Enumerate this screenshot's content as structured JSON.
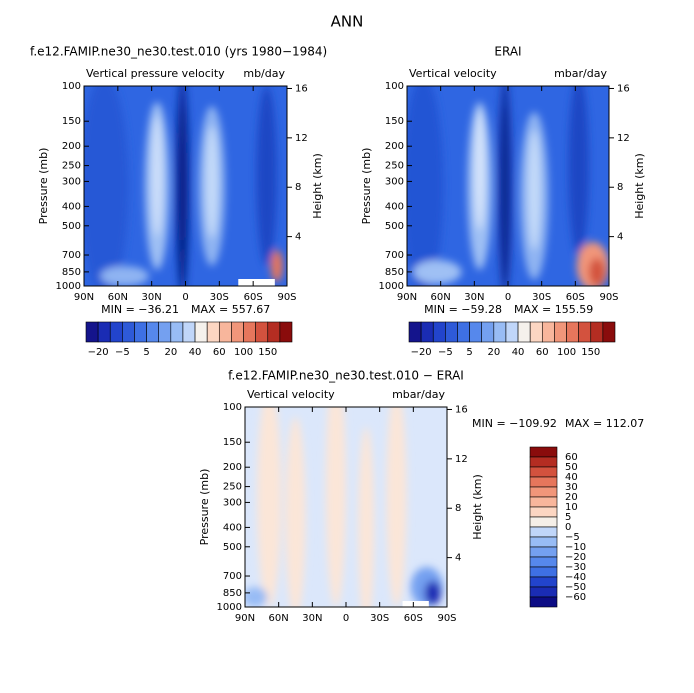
{
  "title": "ANN",
  "chart_data": [
    {
      "type": "contour",
      "title": "f.e12.FAMIP.ne30_ne30.test.010 (yrs 1980−1984)",
      "subtitle_left": "Vertical pressure velocity",
      "subtitle_right": "mb/day",
      "ylabel": "Pressure (mb)",
      "y2label": "Height (km)",
      "xlim": [
        90,
        -90
      ],
      "xticks": [
        {
          "value": 90,
          "label": "90N"
        },
        {
          "value": 60,
          "label": "60N"
        },
        {
          "value": 30,
          "label": "30N"
        },
        0,
        {
          "value": -30,
          "label": "30S"
        },
        {
          "value": -60,
          "label": "60S"
        },
        {
          "value": -90,
          "label": "90S"
        }
      ],
      "ylim": [
        100,
        1000
      ],
      "ylog": true,
      "yticks": [
        100,
        150,
        200,
        250,
        300,
        400,
        500,
        700,
        850,
        1000
      ],
      "y2lim": [
        0,
        16.2
      ],
      "y2ticks": [
        4,
        8,
        12,
        16
      ],
      "stats": [
        {
          "value": -36.21,
          "label": "MIN = −36.21"
        },
        {
          "value": 557.67,
          "label": "MAX = 557.67"
        }
      ],
      "colorbar": {
        "orientation": "horizontal",
        "levels": [
          {
            "value": -20,
            "label": "−20"
          },
          null,
          {
            "value": -5,
            "label": "−5"
          },
          null,
          5,
          null,
          20,
          null,
          40,
          null,
          60,
          null,
          100,
          null,
          150,
          null
        ],
        "colors": [
          "#14148c",
          "#1a2cb4",
          "#2244cc",
          "#2e5ad8",
          "#3e70e4",
          "#5688ec",
          "#74a0f0",
          "#98bcf5",
          "#c0d6f9",
          "#f5f1ec",
          "#fcd6c2",
          "#f8b69c",
          "#f1967a",
          "#e6765c",
          "#d3523e",
          "#b42d22",
          "#8a0c0c"
        ]
      }
    },
    {
      "type": "contour",
      "title": "ERAI",
      "subtitle_left": "Vertical velocity",
      "subtitle_right": "mbar/day",
      "ylabel": "Pressure (mb)",
      "y2label": "Height (km)",
      "xlim": [
        90,
        -90
      ],
      "xticks": [
        {
          "value": 90,
          "label": "90N"
        },
        {
          "value": 60,
          "label": "60N"
        },
        {
          "value": 30,
          "label": "30N"
        },
        0,
        {
          "value": -30,
          "label": "30S"
        },
        {
          "value": -60,
          "label": "60S"
        },
        {
          "value": -90,
          "label": "90S"
        }
      ],
      "ylim": [
        100,
        1000
      ],
      "ylog": true,
      "yticks": [
        100,
        150,
        200,
        250,
        300,
        400,
        500,
        700,
        850,
        1000
      ],
      "y2lim": [
        0,
        16.2
      ],
      "y2ticks": [
        4,
        8,
        12,
        16
      ],
      "stats": [
        {
          "value": -59.28,
          "label": "MIN = −59.28"
        },
        {
          "value": 155.59,
          "label": "MAX = 155.59"
        }
      ],
      "colorbar": {
        "orientation": "horizontal",
        "levels": [
          {
            "value": -20,
            "label": "−20"
          },
          null,
          {
            "value": -5,
            "label": "−5"
          },
          null,
          5,
          null,
          20,
          null,
          40,
          null,
          60,
          null,
          100,
          null,
          150,
          null
        ],
        "colors": [
          "#14148c",
          "#1a2cb4",
          "#2244cc",
          "#2e5ad8",
          "#3e70e4",
          "#5688ec",
          "#74a0f0",
          "#98bcf5",
          "#c0d6f9",
          "#f5f1ec",
          "#fcd6c2",
          "#f8b69c",
          "#f1967a",
          "#e6765c",
          "#d3523e",
          "#b42d22",
          "#8a0c0c"
        ]
      }
    },
    {
      "type": "contour",
      "title": "f.e12.FAMIP.ne30_ne30.test.010 − ERAI",
      "subtitle_left": "Vertical velocity",
      "subtitle_right": "mbar/day",
      "ylabel": "Pressure (mb)",
      "y2label": "Height (km)",
      "xlim": [
        90,
        -90
      ],
      "xticks": [
        {
          "value": 90,
          "label": "90N"
        },
        {
          "value": 60,
          "label": "60N"
        },
        {
          "value": 30,
          "label": "30N"
        },
        0,
        {
          "value": -30,
          "label": "30S"
        },
        {
          "value": -60,
          "label": "60S"
        },
        {
          "value": -90,
          "label": "90S"
        }
      ],
      "ylim": [
        100,
        1000
      ],
      "ylog": true,
      "yticks": [
        100,
        150,
        200,
        250,
        300,
        400,
        500,
        700,
        850,
        1000
      ],
      "y2lim": [
        0,
        16.2
      ],
      "y2ticks": [
        4,
        8,
        12,
        16
      ],
      "stats": [
        {
          "value": -109.92,
          "label": "MIN = −109.92"
        },
        {
          "value": 112.07,
          "label": "MAX = 112.07"
        }
      ],
      "colorbar": {
        "orientation": "vertical",
        "levels": [
          60,
          50,
          40,
          30,
          20,
          10,
          5,
          0,
          {
            "value": -5,
            "label": "−5"
          },
          {
            "value": -10,
            "label": "−10"
          },
          {
            "value": -20,
            "label": "−20"
          },
          {
            "value": -30,
            "label": "−30"
          },
          {
            "value": -40,
            "label": "−40"
          },
          {
            "value": -50,
            "label": "−50"
          },
          {
            "value": -60,
            "label": "−60"
          }
        ],
        "colors": [
          "#8a0c0c",
          "#b42d22",
          "#d3523e",
          "#e6765c",
          "#f1967a",
          "#f8b69c",
          "#fcd6c2",
          "#f5efe8",
          "#c0d6f9",
          "#98bcf5",
          "#74a0f0",
          "#5688ec",
          "#3e70e4",
          "#2244cc",
          "#1a2cb4",
          "#0c0c84"
        ]
      }
    }
  ]
}
